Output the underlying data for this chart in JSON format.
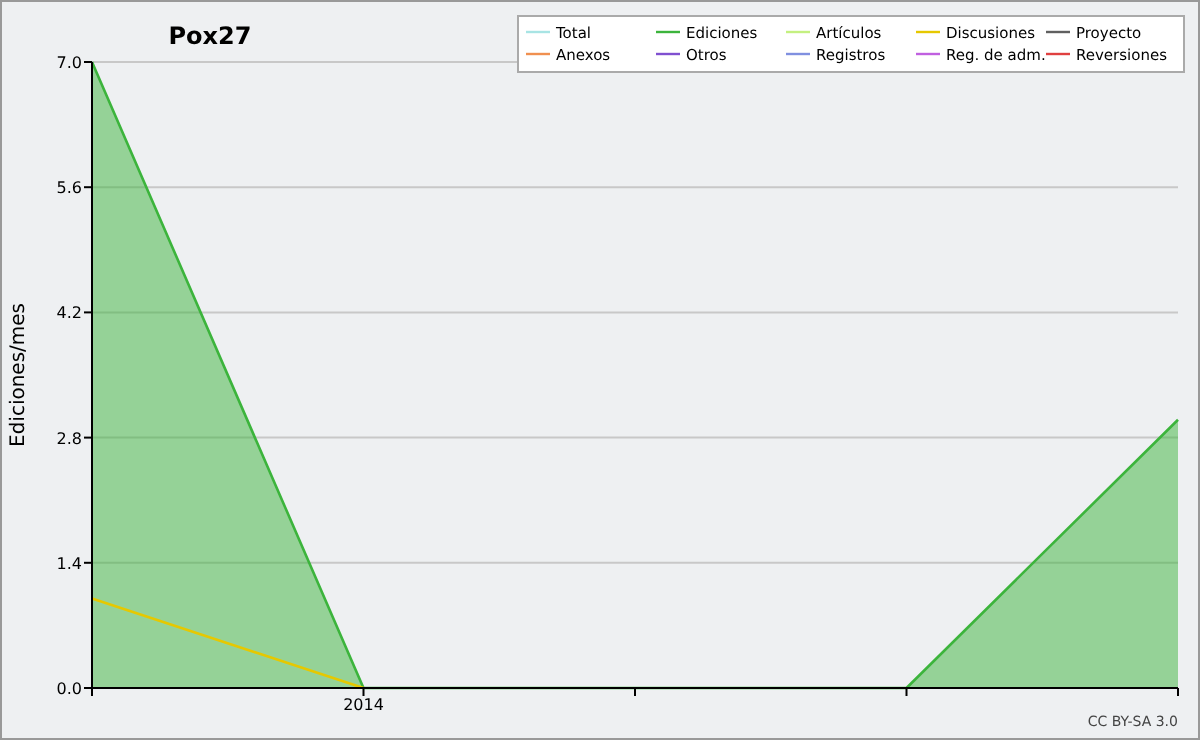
{
  "chart_data": {
    "type": "line",
    "title": "Pox27",
    "ylabel": "Ediciones/mes",
    "categories": [
      null,
      "2014",
      null,
      null,
      null
    ],
    "series": [
      {
        "name": "Total",
        "color": "#a8e4e4",
        "values": [
          null,
          null,
          null,
          null,
          null
        ]
      },
      {
        "name": "Ediciones",
        "color": "#3cb43c",
        "type": "area",
        "values": [
          7,
          0,
          0,
          0,
          3
        ]
      },
      {
        "name": "Artículos",
        "color": "#c4f080",
        "values": [
          null,
          null,
          null,
          null,
          null
        ]
      },
      {
        "name": "Discusiones",
        "color": "#e6c800",
        "values": [
          1,
          0,
          null,
          null,
          null
        ]
      },
      {
        "name": "Proyecto",
        "color": "#606060",
        "values": [
          null,
          null,
          null,
          null,
          null
        ]
      },
      {
        "name": "Anexos",
        "color": "#f09050",
        "values": [
          null,
          null,
          null,
          null,
          null
        ]
      },
      {
        "name": "Otros",
        "color": "#8050d0",
        "values": [
          null,
          null,
          null,
          null,
          null
        ]
      },
      {
        "name": "Registros",
        "color": "#8090e0",
        "values": [
          null,
          null,
          null,
          null,
          null
        ]
      },
      {
        "name": "Reg. de adm.",
        "color": "#c060e0",
        "values": [
          null,
          null,
          null,
          null,
          null
        ]
      },
      {
        "name": "Reversiones",
        "color": "#e04040",
        "values": [
          null,
          null,
          null,
          null,
          null
        ]
      }
    ],
    "ylim": [
      0,
      7
    ],
    "yticks": [
      {
        "value": 0,
        "label": "0.0"
      },
      {
        "value": 1.4,
        "label": "1.4"
      },
      {
        "value": 2.8,
        "label": "2.8"
      },
      {
        "value": 4.2,
        "label": "4.2"
      },
      {
        "value": 5.6,
        "label": "5.6"
      },
      {
        "value": 7,
        "label": "7.0"
      }
    ],
    "grid": "y",
    "legend": "top right",
    "annotations": [
      "CC BY-SA 3.0"
    ]
  }
}
